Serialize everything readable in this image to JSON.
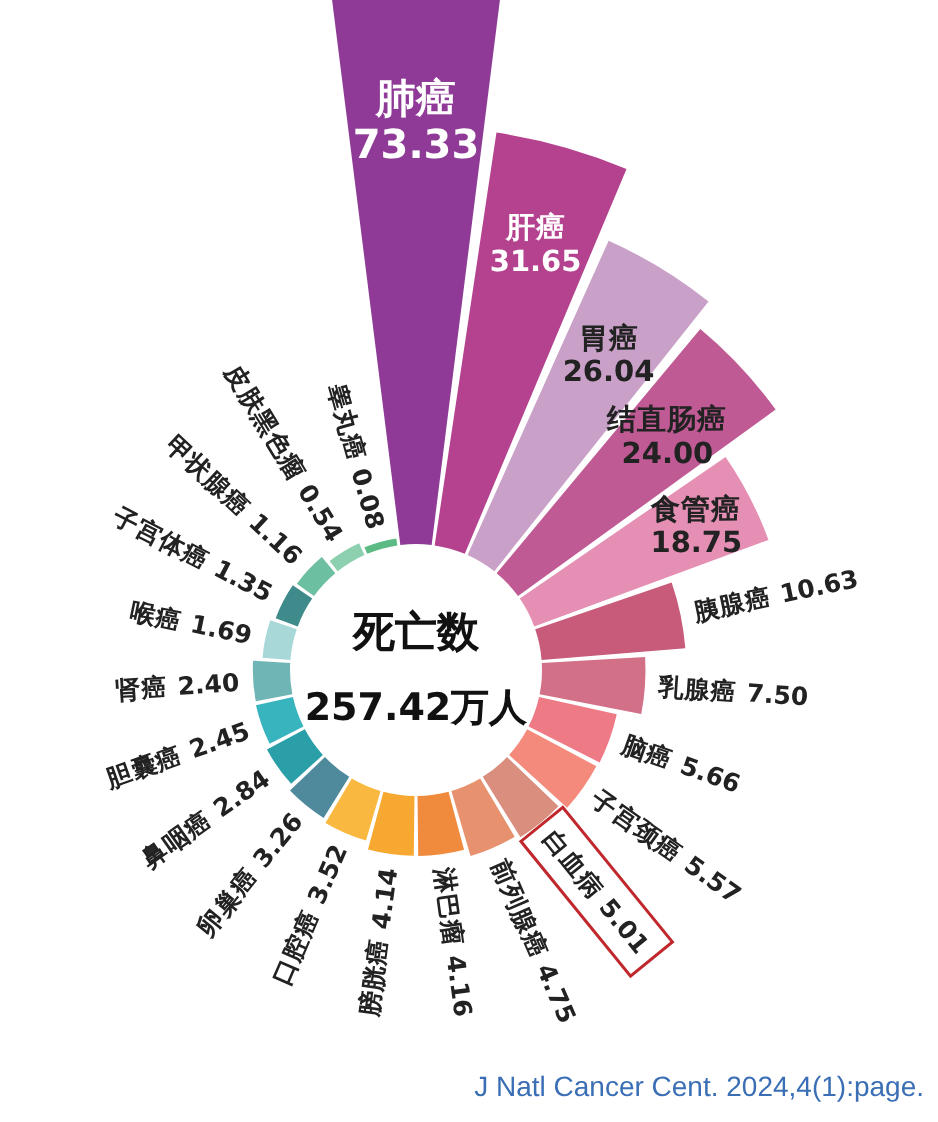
{
  "chart_data": {
    "type": "other",
    "title": "死亡数",
    "subtitle": "257.42万人",
    "categories": [
      "肺癌",
      "肝癌",
      "胃癌",
      "结直肠癌",
      "食管癌",
      "胰腺癌",
      "乳腺癌",
      "脑癌",
      "子宫颈癌",
      "白血病",
      "前列腺癌",
      "淋巴瘤",
      "膀胱癌",
      "口腔癌",
      "卵巢癌",
      "鼻咽癌",
      "胆囊癌",
      "肾癌",
      "喉癌",
      "子宫体癌",
      "甲状腺癌",
      "皮肤黑色瘤",
      "睾丸癌"
    ],
    "values": [
      73.33,
      31.65,
      26.04,
      24.0,
      18.75,
      10.63,
      7.5,
      5.66,
      5.57,
      5.01,
      4.75,
      4.16,
      4.14,
      3.52,
      3.26,
      2.84,
      2.45,
      2.4,
      1.69,
      1.35,
      1.16,
      0.54,
      0.08
    ],
    "value_labels": [
      "73.33",
      "31.65",
      "26.04",
      "24.00",
      "18.75",
      "10.63",
      "7.50",
      "5.66",
      "5.57",
      "5.01",
      "4.75",
      "4.16",
      "4.14",
      "3.52",
      "3.26",
      "2.84",
      "2.45",
      "2.40",
      "1.69",
      "1.35",
      "1.16",
      "0.54",
      "0.08"
    ],
    "colors": [
      "#8e3a96",
      "#b5428f",
      "#c9a0c8",
      "#c05a94",
      "#e58fb5",
      "#c85a7a",
      "#d27088",
      "#ee7a86",
      "#f48a7c",
      "#d98e7e",
      "#e8916e",
      "#f08a3c",
      "#f7a830",
      "#f9b840",
      "#4e8a9c",
      "#2a9fa8",
      "#38b4be",
      "#6fb5b5",
      "#a8d8d8",
      "#3f8a8a",
      "#6cbfa0",
      "#8cd0b0",
      "#5cba84"
    ],
    "annotations": [
      "J Natl Cancer Cent. 2024,4(1):page."
    ]
  }
}
